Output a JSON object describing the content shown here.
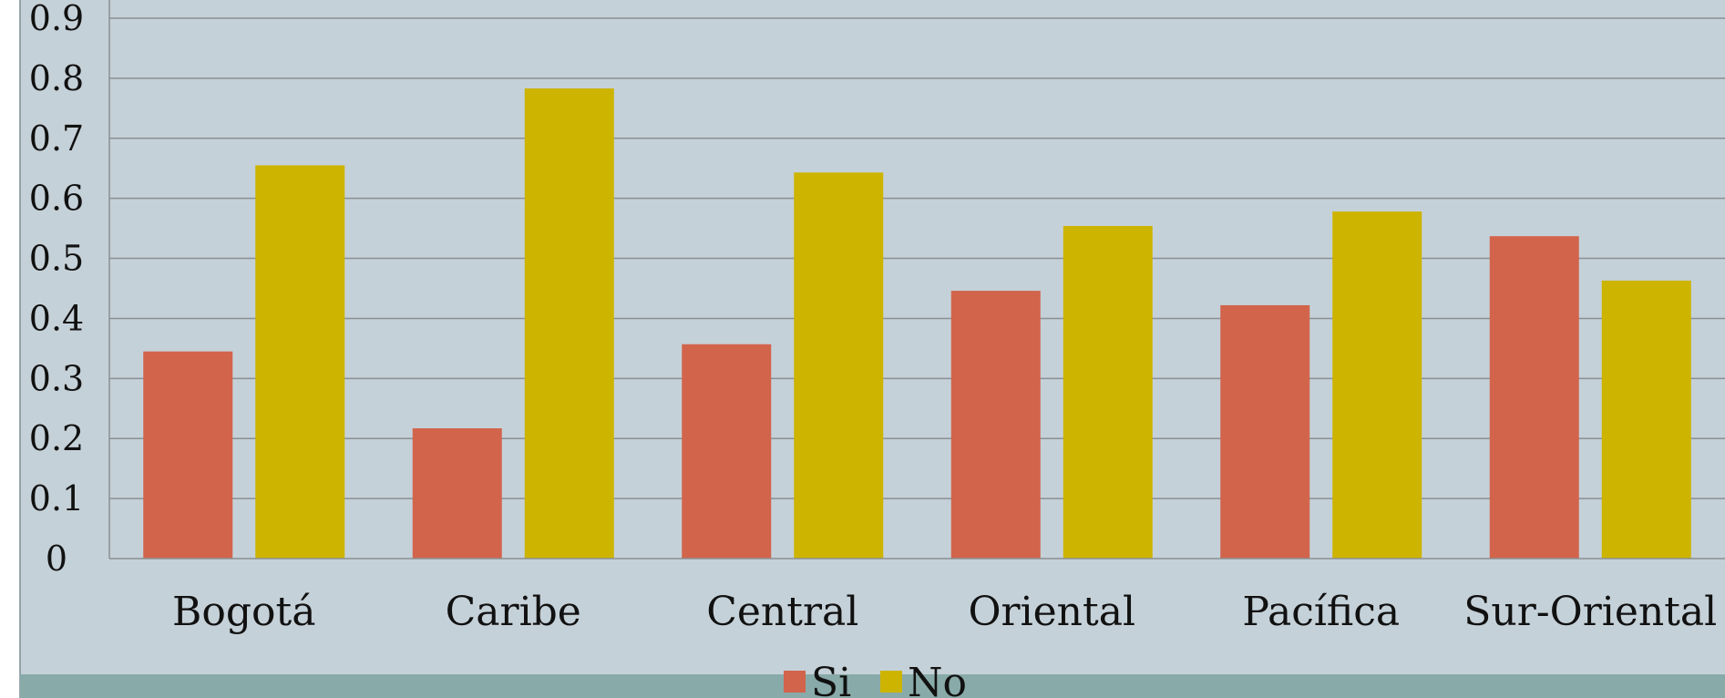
{
  "chart_data": {
    "type": "bar",
    "categories": [
      "Bogotá",
      "Caribe",
      "Central",
      "Oriental",
      "Pacífica",
      "Sur-Oriental"
    ],
    "series": [
      {
        "name": "Si",
        "color": "#D2644C",
        "values": [
          0.345,
          0.217,
          0.357,
          0.446,
          0.422,
          0.537
        ]
      },
      {
        "name": "No",
        "color": "#CDB400",
        "values": [
          0.655,
          0.783,
          0.643,
          0.554,
          0.578,
          0.463
        ]
      }
    ],
    "ylim": [
      0,
      0.9
    ],
    "yticks": [
      "0",
      "0.1",
      "0.2",
      "0.3",
      "0.4",
      "0.5",
      "0.6",
      "0.7",
      "0.8",
      "0.9"
    ],
    "grid": true,
    "legend_position": "bottom",
    "background_color": "#C5D1D8",
    "footer_band_color": "#88AAA9"
  }
}
